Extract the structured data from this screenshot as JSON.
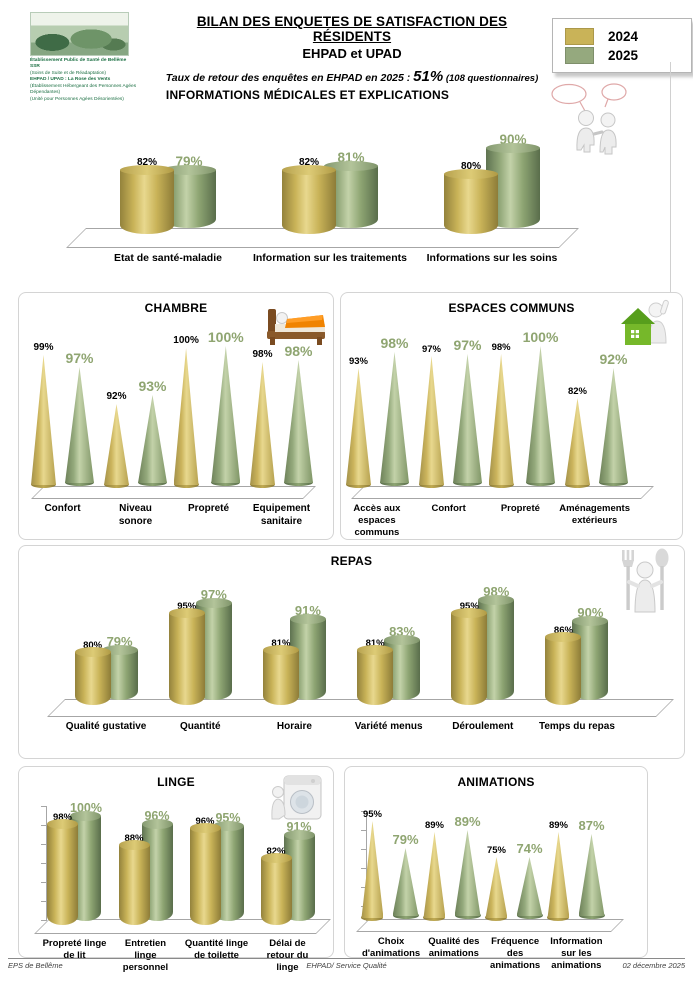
{
  "header": {
    "org_lines": [
      {
        "text": "Établissement Public de Santé de Bellême",
        "bold": true
      },
      {
        "text": "SSR",
        "bold": true
      },
      {
        "text": "(Soins de Suite et de Réadaptation)",
        "bold": false
      },
      {
        "text": "EHPAD / UPAD : La Rose des Vents",
        "bold": true
      },
      {
        "text": "(Établissement Hébergeant des Personnes Agées Dépendantes)",
        "bold": false
      },
      {
        "text": "(Unité pour Personnes Agées Désorientées)",
        "bold": false
      }
    ],
    "title_line1": "BILAN DES ENQUETES DE SATISFACTION DES RÉSIDENTS",
    "title_line2": "EHPAD et UPAD",
    "return_rate": {
      "prefix": "Taux de retour des enquêtes en EHPAD en 2025 : ",
      "rate": "51%",
      "suffix": "  (108 questionnaires)"
    },
    "legend": {
      "items": [
        {
          "label": "2024",
          "color": "#c9b358"
        },
        {
          "label": "2025",
          "color": "#95a97e"
        }
      ]
    }
  },
  "colors": {
    "series_2024": "#c9b358",
    "series_2025": "#95a97e",
    "value_label_2025": "#8fa571"
  },
  "chart_data": [
    {
      "id": "infos",
      "type": "bar",
      "style": "cylinder",
      "title": "INFORMATIONS  MÉDICALES ET EXPLICATIONS",
      "icon": "dialogue-figures",
      "categories": [
        "Etat de santé-maladie",
        "Information sur les traitements",
        "Informations sur les soins"
      ],
      "ylim": [
        50,
        100
      ],
      "series": [
        {
          "name": "2024",
          "values": [
            82,
            82,
            80
          ]
        },
        {
          "name": "2025",
          "values": [
            79,
            81,
            90
          ]
        }
      ]
    },
    {
      "id": "chambre",
      "type": "bar",
      "style": "cone",
      "title": "CHAMBRE",
      "icon": "bed",
      "categories": [
        "Confort",
        "Niveau sonore",
        "Propreté",
        "Equipement sanitaire"
      ],
      "ylim": [
        80,
        100
      ],
      "series": [
        {
          "name": "2024",
          "values": [
            99,
            92,
            100,
            98
          ]
        },
        {
          "name": "2025",
          "values": [
            97,
            93,
            100,
            98
          ]
        }
      ]
    },
    {
      "id": "espaces",
      "type": "bar",
      "style": "cone",
      "title": "ESPACES COMMUNS",
      "icon": "house-figure",
      "categories": [
        "Accès aux espaces communs",
        "Confort",
        "Propreté",
        "Aménagements extérieurs"
      ],
      "ylim": [
        50,
        100
      ],
      "series": [
        {
          "name": "2024",
          "values": [
            93,
            97,
            98,
            82
          ]
        },
        {
          "name": "2025",
          "values": [
            98,
            97,
            100,
            92
          ]
        }
      ]
    },
    {
      "id": "repas",
      "type": "bar",
      "style": "cylinder",
      "title": "REPAS",
      "icon": "cutlery-figure",
      "categories": [
        "Qualité gustative",
        "Quantité",
        "Horaire",
        "Variété menus",
        "Déroulement",
        "Temps du repas"
      ],
      "ylim": [
        60,
        100
      ],
      "series": [
        {
          "name": "2024",
          "values": [
            80,
            95,
            81,
            81,
            95,
            86
          ]
        },
        {
          "name": "2025",
          "values": [
            79,
            97,
            91,
            83,
            98,
            90
          ]
        }
      ]
    },
    {
      "id": "linge",
      "type": "bar",
      "style": "cylinder",
      "title": "LINGE",
      "icon": "washing-machine",
      "categories": [
        "Propreté linge de lit",
        "Entretien linge personnel",
        "Quantité linge de toilette",
        "Délai de retour du linge"
      ],
      "ylim": [
        50,
        100
      ],
      "series": [
        {
          "name": "2024",
          "values": [
            98,
            88,
            96,
            82
          ]
        },
        {
          "name": "2025",
          "values": [
            100,
            96,
            95,
            91
          ]
        }
      ]
    },
    {
      "id": "animations",
      "type": "bar",
      "style": "cone",
      "title": "ANIMATIONS",
      "icon": null,
      "categories": [
        "Choix d'animations",
        "Qualité des animations",
        "Fréquence des animations",
        "Information sur les animations"
      ],
      "ylim": [
        40,
        95
      ],
      "series": [
        {
          "name": "2024",
          "values": [
            95,
            89,
            75,
            89
          ]
        },
        {
          "name": "2025",
          "values": [
            79,
            89,
            74,
            87
          ]
        }
      ]
    }
  ],
  "footer": {
    "left": "EPS de Bellême",
    "center": "EHPAD/ Service Qualité",
    "right": "02 décembre 2025"
  }
}
